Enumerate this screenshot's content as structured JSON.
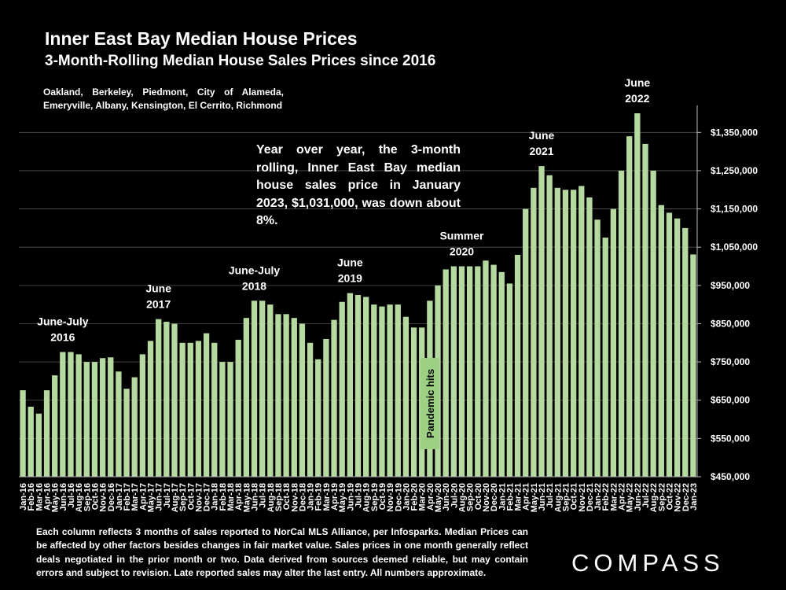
{
  "page": {
    "title": "Inner East Bay Median House Prices",
    "subtitle": "3-Month-Rolling Median House Sales Prices since 2016",
    "cities_note": "Oakland, Berkeley, Piedmont, City of Alameda, Emeryville, Albany, Kensington, El Cerrito, Richmond",
    "callout": "Year over year, the 3-month rolling, Inner East Bay median house sales price in January 2023, $1,031,000, was down about 8%.",
    "footer": "Each column reflects 3 months of sales reported to NorCal MLS Alliance, per Infosparks. Median Prices can be affected by other factors besides changes in fair market value. Sales prices in one month generally reflect deals negotiated in the prior month or two. Data derived from sources deemed reliable, but may contain errors and subject to revision. Late reported sales may alter the last entry. All numbers approximate.",
    "brand": "COMPASS"
  },
  "chart_data": {
    "type": "bar",
    "title": "Inner East Bay Median House Prices",
    "subtitle": "3-Month-Rolling Median House Sales Prices since 2016",
    "ylim": [
      450000,
      1400000
    ],
    "yticks": [
      450000,
      550000,
      650000,
      750000,
      850000,
      950000,
      1050000,
      1150000,
      1250000,
      1350000
    ],
    "ytick_labels": [
      "$450,000",
      "$550,000",
      "$650,000",
      "$750,000",
      "$850,000",
      "$950,000",
      "$1,050,000",
      "$1,150,000",
      "$1,250,000",
      "$1,350,000"
    ],
    "y_axis_position": "right",
    "grid": true,
    "bar_color": "#b5d9a0",
    "categories": [
      "Jan-16",
      "Feb-16",
      "Mar-16",
      "Apr-16",
      "May-16",
      "Jun-16",
      "Jul-16",
      "Aug-16",
      "Sep-16",
      "Oct-16",
      "Nov-16",
      "Dec-16",
      "Jan-17",
      "Feb-17",
      "Mar-17",
      "Apr-17",
      "May-17",
      "Jun-17",
      "Jul-17",
      "Aug-17",
      "Sep-17",
      "Oct-17",
      "Nov-17",
      "Dec-17",
      "Jan-18",
      "Feb-18",
      "Mar-18",
      "Apr-18",
      "May-18",
      "Jun-18",
      "Jul-18",
      "Aug-18",
      "Sep-18",
      "Oct-18",
      "Nov-18",
      "Dec-18",
      "Jan-19",
      "Feb-19",
      "Mar-19",
      "Apr-19",
      "May-19",
      "Jun-19",
      "Jul-19",
      "Aug-19",
      "Sep-19",
      "Oct-19",
      "Nov-19",
      "Dec-19",
      "Jan-20",
      "Feb-20",
      "Mar-20",
      "Apr-20",
      "May-20",
      "Jun-20",
      "Jul-20",
      "Aug-20",
      "Sep-20",
      "Oct-20",
      "Nov-20",
      "Dec-20",
      "Jan-21",
      "Feb-21",
      "Mar-21",
      "Apr-21",
      "May-21",
      "Jun-21",
      "Jul-21",
      "Aug-21",
      "Sep-21",
      "Oct-21",
      "Nov-21",
      "Dec-21",
      "Jan-22",
      "Feb-22",
      "Mar-22",
      "Apr-22",
      "May-22",
      "Jun-22",
      "Jul-22",
      "Aug-22",
      "Sep-22",
      "Oct-22",
      "Nov-22",
      "Dec-22",
      "Jan-23"
    ],
    "values": [
      676000,
      633000,
      615000,
      676000,
      715000,
      776000,
      776000,
      770000,
      750000,
      750000,
      760000,
      762000,
      725000,
      680000,
      710000,
      770000,
      805000,
      862000,
      855000,
      850000,
      800000,
      800000,
      805000,
      825000,
      800000,
      750000,
      750000,
      808000,
      865000,
      910000,
      910000,
      900000,
      875000,
      875000,
      865000,
      850000,
      800000,
      757000,
      810000,
      860000,
      907000,
      930000,
      925000,
      920000,
      900000,
      895000,
      900000,
      900000,
      868000,
      840000,
      840000,
      910000,
      950000,
      992000,
      1000000,
      1000000,
      1000000,
      1000000,
      1015000,
      1004000,
      985000,
      955000,
      1030000,
      1150000,
      1205000,
      1262000,
      1238000,
      1205000,
      1200000,
      1200000,
      1210000,
      1180000,
      1122000,
      1075000,
      1150000,
      1250000,
      1340000,
      1400000,
      1320000,
      1250000,
      1160000,
      1140000,
      1125000,
      1100000,
      1031000
    ],
    "annotations": [
      {
        "text": "June-July 2016",
        "lines": [
          "June-July",
          "2016"
        ],
        "index": 5
      },
      {
        "text": "June 2017",
        "lines": [
          "June",
          "2017"
        ],
        "index": 17
      },
      {
        "text": "June-July 2018",
        "lines": [
          "June-July",
          "2018"
        ],
        "index": 29
      },
      {
        "text": "June 2019",
        "lines": [
          "June",
          "2019"
        ],
        "index": 41
      },
      {
        "text": "Summer 2020",
        "lines": [
          "Summer",
          "2020"
        ],
        "index": 55
      },
      {
        "text": "June 2021",
        "lines": [
          "June",
          "2021"
        ],
        "index": 65
      },
      {
        "text": "June 2022",
        "lines": [
          "June",
          "2022"
        ],
        "index": 77
      }
    ],
    "event_label": {
      "text": "Pandemic hits",
      "index": 51
    }
  }
}
